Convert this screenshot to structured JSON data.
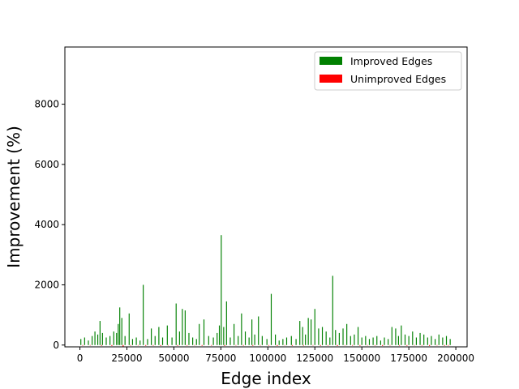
{
  "chart_data": {
    "type": "bar",
    "title": "",
    "xlabel": "Edge index",
    "ylabel": "Improvement (%)",
    "xlim": [
      -8000,
      206000
    ],
    "ylim": [
      -60,
      9900
    ],
    "xticks": [
      0,
      25000,
      50000,
      75000,
      100000,
      125000,
      150000,
      175000,
      200000
    ],
    "xtick_labels": [
      "0",
      "25000",
      "50000",
      "75000",
      "100000",
      "125000",
      "150000",
      "175000",
      "200000"
    ],
    "yticks": [
      0,
      2000,
      4000,
      6000,
      8000
    ],
    "ytick_labels": [
      "0",
      "2000",
      "4000",
      "6000",
      "8000"
    ],
    "grid": false,
    "legend_position": "top-right",
    "colors": {
      "improved": "#008000",
      "unimproved": "#ff0000"
    },
    "series": [
      {
        "name": "Improved Edges",
        "color": "#008000",
        "x": [
          500,
          2500,
          4500,
          6500,
          8000,
          9500,
          10700,
          12000,
          14000,
          16000,
          18000,
          19500,
          20400,
          21200,
          22300,
          24000,
          26200,
          28000,
          30000,
          32000,
          33700,
          36000,
          38000,
          40000,
          42000,
          44000,
          46500,
          49000,
          51200,
          53000,
          54500,
          56000,
          58000,
          60000,
          62000,
          63500,
          66000,
          68500,
          71000,
          73000,
          74200,
          75200,
          76500,
          78000,
          80000,
          82000,
          84200,
          86000,
          88000,
          90000,
          91500,
          93000,
          95000,
          97000,
          99500,
          101800,
          104000,
          106000,
          108000,
          110000,
          112500,
          115000,
          117000,
          118500,
          120000,
          121500,
          123000,
          125000,
          127000,
          129000,
          131000,
          133000,
          134500,
          136000,
          138000,
          140000,
          142000,
          144000,
          146000,
          148000,
          150000,
          152000,
          154000,
          156000,
          158000,
          160000,
          162000,
          164000,
          166000,
          168000,
          169500,
          171000,
          173000,
          175000,
          177000,
          179000,
          181000,
          183000,
          185000,
          187000,
          189000,
          191000,
          193000,
          195000,
          197000
        ],
        "values": [
          200,
          250,
          150,
          300,
          450,
          350,
          800,
          400,
          250,
          300,
          450,
          400,
          700,
          1250,
          900,
          300,
          1050,
          200,
          250,
          150,
          2000,
          200,
          550,
          300,
          600,
          250,
          650,
          250,
          1380,
          450,
          1200,
          1150,
          400,
          250,
          200,
          700,
          850,
          300,
          250,
          400,
          650,
          3650,
          600,
          1450,
          250,
          700,
          300,
          1050,
          450,
          250,
          850,
          350,
          950,
          300,
          200,
          1700,
          350,
          150,
          200,
          250,
          300,
          200,
          800,
          600,
          350,
          900,
          850,
          1200,
          550,
          600,
          450,
          250,
          2300,
          500,
          400,
          550,
          700,
          300,
          350,
          600,
          250,
          300,
          200,
          250,
          300,
          150,
          250,
          200,
          600,
          550,
          300,
          650,
          350,
          300,
          450,
          250,
          400,
          350,
          250,
          300,
          200,
          350,
          250,
          300,
          200
        ],
        "width": 500
      },
      {
        "name": "Unimproved Edges",
        "color": "#ff0000",
        "x": [
          1500,
          5500,
          11500,
          17000,
          23000,
          27000,
          31000,
          35000,
          39000,
          43000,
          47000,
          52000,
          57000,
          61000,
          65000,
          70000,
          77000,
          83000,
          87000,
          92000,
          96000,
          100500,
          105000,
          109000,
          113000,
          119000,
          124000,
          128000,
          132000,
          137000,
          141000,
          145000,
          149000,
          153000,
          157000,
          161000,
          165000,
          170000,
          174000,
          178000,
          182000,
          186000,
          190000,
          194000,
          196000
        ],
        "values": [
          -20,
          -15,
          -25,
          -30,
          -60,
          -20,
          -15,
          -25,
          -20,
          -30,
          -15,
          -25,
          -20,
          -15,
          -25,
          -20,
          -30,
          -15,
          -20,
          -25,
          -15,
          -20,
          -30,
          -15,
          -25,
          -20,
          -15,
          -25,
          -20,
          -30,
          -15,
          -20,
          -25,
          -15,
          -20,
          -30,
          -15,
          -20,
          -25,
          -15,
          -20,
          -30,
          -15,
          -25,
          -20
        ],
        "width": 500
      }
    ]
  }
}
